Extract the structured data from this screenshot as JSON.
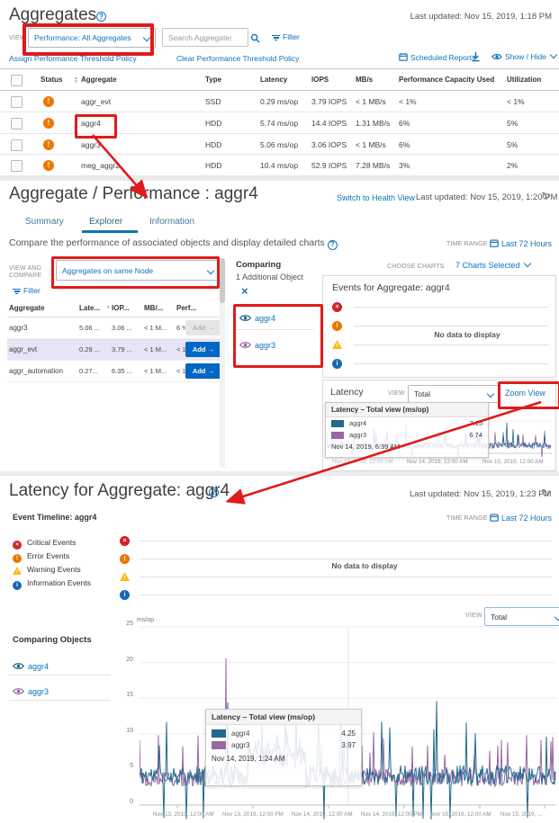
{
  "colors": {
    "link_blue": "#1173ba",
    "accent_blue": "#0067c5",
    "annotation_red": "#e01b1b",
    "series_aggr4": "#22698d",
    "series_aggr3": "#9a68a5",
    "status_orange": "#ee7600",
    "critical_red": "#d3222a",
    "warning_yellow": "#fdb913",
    "info_blue": "#1668b5",
    "row_highlight": "#e9e4f5"
  },
  "aggregates_page": {
    "title": "Aggregates",
    "last_updated": "Last updated: Nov 15, 2019, 1:18 PM",
    "view_label": "VIEW",
    "view_dropdown_value": "Performance: All Aggregates",
    "search_placeholder": "Search Aggregates",
    "filter_label": "Filter",
    "assign_policy_link": "Assign Performance Threshold Policy",
    "clear_policy_link": "Clear Performance Threshold Policy",
    "scheduled_reports_link": "Scheduled Reports",
    "show_hide_label": "Show / Hide",
    "table": {
      "columns": [
        "Status",
        "Aggregate",
        "Type",
        "Latency",
        "IOPS",
        "MB/s",
        "Performance Capacity Used",
        "Utilization"
      ],
      "rows": [
        {
          "name": "aggr_evt",
          "type": "SSD",
          "latency": "0.29 ms/op",
          "iops": "3.79 IOPS",
          "mbs": "< 1 MB/s",
          "perf_capacity": "< 1%",
          "utilization": "< 1%"
        },
        {
          "name": "aggr4",
          "type": "HDD",
          "latency": "5.74 ms/op",
          "iops": "14.4 IOPS",
          "mbs": "1.31 MB/s",
          "perf_capacity": "6%",
          "utilization": "5%"
        },
        {
          "name": "aggr3",
          "type": "HDD",
          "latency": "5.06 ms/op",
          "iops": "3.06 IOPS",
          "mbs": "< 1 MB/s",
          "perf_capacity": "6%",
          "utilization": "5%"
        },
        {
          "name": "meg_aggr2",
          "type": "HDD",
          "latency": "10.4 ms/op",
          "iops": "52.9 IOPS",
          "mbs": "7.28 MB/s",
          "perf_capacity": "3%",
          "utilization": "2%"
        }
      ]
    }
  },
  "explorer_page": {
    "title": "Aggregate / Performance : aggr4",
    "switch_view_link": "Switch to Health View",
    "last_updated": "Last updated: Nov 15, 2019, 1:20 PM",
    "tabs": [
      "Summary",
      "Explorer",
      "Information"
    ],
    "active_tab": "Explorer",
    "description": "Compare the performance of associated objects and display detailed charts",
    "time_range_label": "TIME RANGE",
    "time_range_value": "Last 72 Hours",
    "view_and_compare_label": "VIEW AND COMPARE",
    "compare_dropdown_value": "Aggregates on same Node",
    "filter_label": "Filter",
    "compare_table": {
      "columns": [
        "Aggregate",
        "Late...",
        "IOP...",
        "MB/...",
        "Perf..."
      ],
      "add_label": "Add",
      "rows": [
        {
          "name": "aggr3",
          "latency": "5.06 ...",
          "iops": "3.06 ...",
          "mbs": "< 1 M...",
          "perf": "6 %"
        },
        {
          "name": "aggr_evt",
          "latency": "0.29 ...",
          "iops": "3.79 ...",
          "mbs": "< 1 M...",
          "perf": "< 1 %"
        },
        {
          "name": "aggr_automation",
          "latency": "0.27...",
          "iops": "6.35 ...",
          "mbs": "< 1 M...",
          "perf": "< 1 %"
        }
      ]
    },
    "comparing_panel": {
      "title": "Comparing",
      "subtitle": "1 Additional Object",
      "objects": [
        "aggr4",
        "aggr3"
      ]
    },
    "choose_charts_label": "CHOOSE CHARTS",
    "charts_selected_value": "7 Charts Selected",
    "events_card_title": "Events for Aggregate: aggr4",
    "events_empty_text": "No data to display",
    "latency_panel": {
      "title": "Latency",
      "view_label": "VIEW",
      "view_value": "Total",
      "zoom_view_link": "Zoom View",
      "tooltip_title": "Latency – Total view (ms/op)",
      "tooltip_rows": [
        {
          "name": "aggr4",
          "value": "7.15"
        },
        {
          "name": "aggr3",
          "value": "6.74"
        }
      ],
      "tooltip_timestamp": "Nov 14, 2019, 6:39 AM",
      "x_labels": [
        "Nov 13, 2019, 12:00 AM",
        "Nov 14, 2019, 12:00 AM",
        "Nov 15, 2019, 12:00 AM"
      ]
    }
  },
  "zoom_page": {
    "title": "Latency for Aggregate: aggr4",
    "last_updated": "Last updated: Nov 15, 2019, 1:23 PM",
    "event_timeline_label": "Event Timeline: aggr4",
    "time_range_label": "TIME RANGE",
    "time_range_value": "Last 72 Hours",
    "legend": [
      "Critical Events",
      "Error Events",
      "Warning Events",
      "Information Events"
    ],
    "events_empty_text": "No data to display",
    "view_label": "VIEW",
    "view_value": "Total",
    "comparing_objects_label": "Comparing Objects",
    "objects": [
      "aggr4",
      "aggr3"
    ],
    "y_axis_unit": "ms/op",
    "y_ticks": [
      "25",
      "20",
      "15",
      "10",
      "5",
      "0"
    ],
    "x_labels": [
      "Nov 13, 2019, 12:00 AM",
      "Nov 13, 2019, 12:00 PM",
      "Nov 14, 2019, 12:00 AM",
      "Nov 14, 2019, 12:00 PM",
      "Nov 15, 2019, 12:00 AM",
      "Nov 15, 2019, ..."
    ],
    "tooltip_title": "Latency – Total view (ms/op)",
    "tooltip_rows": [
      {
        "name": "aggr4",
        "value": "4.25"
      },
      {
        "name": "aggr3",
        "value": "3.97"
      }
    ],
    "tooltip_timestamp": "Nov 14, 2019, 1:24 AM"
  },
  "chart_data": [
    {
      "id": "mini-latency-chart",
      "type": "line",
      "title": "Latency – Total view (ms/op)",
      "ylabel": "ms/op",
      "legend_position": "tooltip-overlay-left",
      "x_ticks": [
        "Nov 13, 2019, 12:00 AM",
        "Nov 14, 2019, 12:00 AM",
        "Nov 15, 2019, 12:00 AM"
      ],
      "series": [
        {
          "name": "aggr4",
          "color": "#22698d",
          "baseline_ms": 4,
          "typical_spike_ms": [
            7,
            13
          ],
          "tooltip_value": 7.15
        },
        {
          "name": "aggr3",
          "color": "#9a68a5",
          "baseline_ms": 3.5,
          "typical_spike_ms": [
            6,
            10
          ],
          "tooltip_value": 6.74
        }
      ],
      "tooltip_timestamp": "Nov 14, 2019, 6:39 AM",
      "grid": true
    },
    {
      "id": "main-latency-chart",
      "type": "line",
      "title": "Latency – Total view (ms/op)",
      "ylabel": "ms/op",
      "ylim": [
        0,
        25
      ],
      "y_ticks": [
        0,
        5,
        10,
        15,
        20,
        25
      ],
      "x_ticks": [
        "Nov 13, 2019, 12:00 AM",
        "Nov 13, 2019, 12:00 PM",
        "Nov 14, 2019, 12:00 AM",
        "Nov 14, 2019, 12:00 PM",
        "Nov 15, 2019, 12:00 AM",
        "Nov 15, 2019, ..."
      ],
      "series": [
        {
          "name": "aggr4",
          "color": "#22698d",
          "baseline_ms": 4.2,
          "typical_spike_ms": [
            8,
            14.6
          ],
          "max_peak_ms": 14.6,
          "tooltip_value": 4.25
        },
        {
          "name": "aggr3",
          "color": "#9a68a5",
          "baseline_ms": 3.8,
          "typical_spike_ms": [
            7,
            10
          ],
          "max_peak_ms": 20.6,
          "tooltip_value": 3.97
        }
      ],
      "tooltip_timestamp": "Nov 14, 2019, 1:24 AM",
      "grid": true
    }
  ]
}
